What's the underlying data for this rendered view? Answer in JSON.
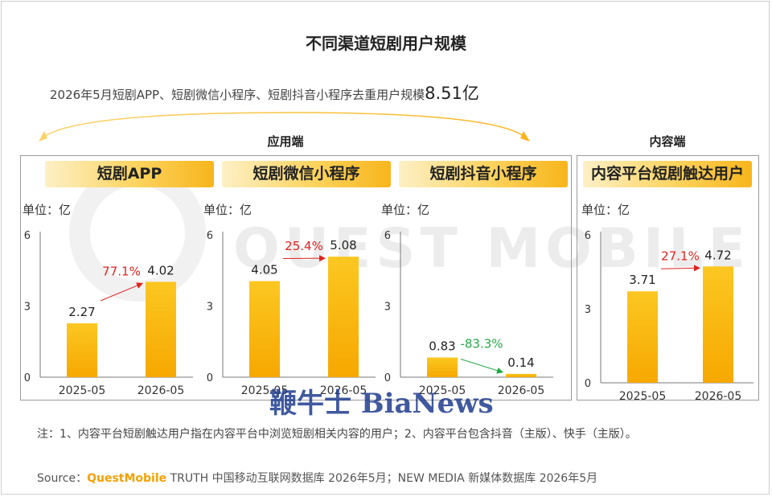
{
  "title": "不同渠道短剧用户规模",
  "summary": {
    "text": "2026年5月短剧APP、短剧微信小程序、短剧抖音小程序去重用户规模",
    "value": "8.51亿"
  },
  "groups": {
    "app_side": "应用端",
    "content_side": "内容端"
  },
  "unit_label": "单位：亿",
  "watermark": {
    "text": "QUEST MOBILE",
    "overlay": "鞭牛士 BiaNews"
  },
  "colors": {
    "bar_top": "#fcc722",
    "bar_bottom": "#f6a800",
    "up_arrow": "#e0221f",
    "down_arrow": "#22a847",
    "border": "#9a9a9a"
  },
  "chart_data": [
    {
      "type": "bar",
      "title": "短剧APP",
      "unit": "单位：亿",
      "categories": [
        "2025-05",
        "2026-05"
      ],
      "values": [
        2.27,
        4.02
      ],
      "value_labels": [
        "2.27",
        "4.02"
      ],
      "ylim": [
        0,
        6
      ],
      "yticks": [
        "0",
        "3",
        "6"
      ],
      "growth": {
        "label": "77.1%",
        "direction": "up"
      }
    },
    {
      "type": "bar",
      "title": "短剧微信小程序",
      "unit": "单位：亿",
      "categories": [
        "2025-05",
        "2026-05"
      ],
      "values": [
        4.05,
        5.08
      ],
      "value_labels": [
        "4.05",
        "5.08"
      ],
      "ylim": [
        0,
        6
      ],
      "yticks": [
        "0",
        "3",
        "6"
      ],
      "growth": {
        "label": "25.4%",
        "direction": "up"
      }
    },
    {
      "type": "bar",
      "title": "短剧抖音小程序",
      "unit": "单位：亿",
      "categories": [
        "2025-05",
        "2026-05"
      ],
      "values": [
        0.83,
        0.14
      ],
      "value_labels": [
        "0.83",
        "0.14"
      ],
      "ylim": [
        0,
        6
      ],
      "yticks": [
        "0",
        "3",
        "6"
      ],
      "growth": {
        "label": "-83.3%",
        "direction": "down"
      }
    },
    {
      "type": "bar",
      "title": "内容平台短剧触达用户",
      "unit": "单位：亿",
      "categories": [
        "2025-05",
        "2026-05"
      ],
      "values": [
        3.71,
        4.72
      ],
      "value_labels": [
        "3.71",
        "4.72"
      ],
      "ylim": [
        0,
        6
      ],
      "yticks": [
        "0",
        "3",
        "6"
      ],
      "growth": {
        "label": "27.1%",
        "direction": "up"
      }
    }
  ],
  "note": "注：1、内容平台短剧触达用户指在内容平台中浏览短剧相关内容的用户；2、内容平台包含抖音（主版）、快手（主版）。",
  "source": {
    "prefix": "Source：",
    "brand": "QuestMobile",
    "rest": " TRUTH 中国移动互联网数据库 2026年5月；NEW MEDIA 新媒体数据库 2026年5月"
  }
}
